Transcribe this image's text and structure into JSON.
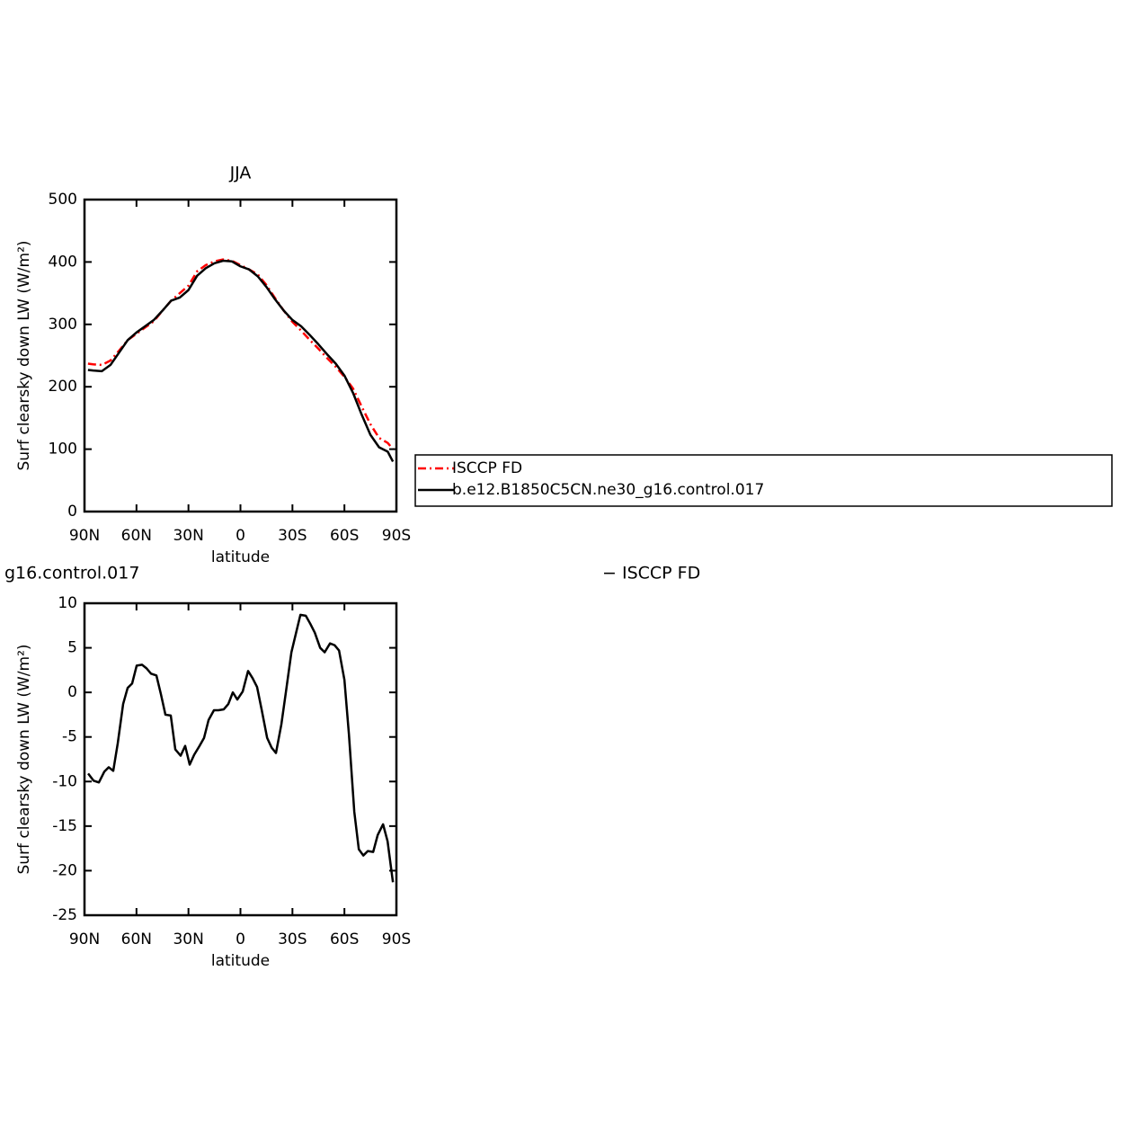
{
  "chart_data": [
    {
      "type": "line",
      "title": "JJA",
      "ylabel": "Surf clearsky down LW (W/m²)",
      "xlabel": "latitude",
      "x": [
        88,
        85,
        80,
        75,
        70,
        65,
        60,
        55,
        50,
        45,
        40,
        35,
        30,
        25,
        20,
        15,
        10,
        5,
        0,
        -5,
        -10,
        -15,
        -20,
        -25,
        -30,
        -35,
        -40,
        -45,
        -50,
        -55,
        -60,
        -65,
        -70,
        -75,
        -80,
        -85,
        -88
      ],
      "xlim": [
        90,
        -90
      ],
      "xticks": [
        {
          "value": 90,
          "label": "90N"
        },
        {
          "value": 60,
          "label": "60N"
        },
        {
          "value": 30,
          "label": "30N"
        },
        0,
        {
          "value": -30,
          "label": "30S"
        },
        {
          "value": -60,
          "label": "60S"
        },
        {
          "value": -90,
          "label": "90S"
        }
      ],
      "ylim": [
        0,
        500
      ],
      "yticks": [
        0,
        100,
        200,
        300,
        400,
        500
      ],
      "legend": "right",
      "series": [
        {
          "name": "ISCCP FD",
          "color": "#ff0000",
          "dash": "dashed",
          "values": [
            237,
            236,
            235,
            242,
            258,
            275,
            285,
            295,
            305,
            322,
            338,
            350,
            362,
            385,
            395,
            401,
            404,
            402,
            395,
            388,
            380,
            363,
            342,
            322,
            304,
            290,
            275,
            261,
            246,
            232,
            216,
            197,
            168,
            140,
            118,
            110,
            100
          ]
        },
        {
          "name": "b.e12.B1850C5CN.ne30_g16.control.017",
          "color": "#000000",
          "dash": "solid",
          "values": [
            227,
            226,
            225,
            235,
            255,
            275,
            287,
            297,
            307,
            322,
            338,
            343,
            355,
            378,
            390,
            398,
            402,
            401,
            393,
            388,
            377,
            360,
            340,
            322,
            307,
            297,
            283,
            268,
            252,
            237,
            218,
            190,
            155,
            123,
            103,
            96,
            80
          ]
        }
      ]
    },
    {
      "type": "line",
      "title": "g16.control.017",
      "title_right": "− ISCCP FD",
      "ylabel": "Surf clearsky down LW (W/m²)",
      "xlabel": "latitude",
      "x": [
        87.9,
        84.8,
        81.7,
        78.6,
        76.0,
        73.4,
        70.8,
        67.7,
        65.1,
        62.5,
        59.9,
        56.8,
        54.2,
        51.6,
        48.5,
        45.9,
        43.3,
        40.2,
        37.6,
        34.5,
        31.9,
        29.3,
        26.7,
        23.6,
        21.0,
        18.4,
        15.3,
        12.7,
        9.6,
        7.0,
        4.4,
        1.8,
        -1.3,
        -4.4,
        -7.0,
        -9.6,
        -12.2,
        -15.4,
        -18.0,
        -20.5,
        -23.6,
        -26.2,
        -29.4,
        -32.0,
        -34.6,
        -37.7,
        -40.3,
        -42.9,
        -46.0,
        -48.6,
        -51.7,
        -54.3,
        -56.9,
        -60.0,
        -62.6,
        -65.7,
        -68.3,
        -70.9,
        -73.5,
        -76.6,
        -79.2,
        -82.3,
        -84.9,
        -88.0
      ],
      "xlim": [
        90,
        -90
      ],
      "xticks": [
        {
          "value": 90,
          "label": "90N"
        },
        {
          "value": 60,
          "label": "60N"
        },
        {
          "value": 30,
          "label": "30N"
        },
        0,
        {
          "value": -30,
          "label": "30S"
        },
        {
          "value": -60,
          "label": "60S"
        },
        {
          "value": -90,
          "label": "90S"
        }
      ],
      "ylim": [
        -25,
        10
      ],
      "yticks": [
        -25,
        -20,
        -15,
        -10,
        -5,
        0,
        5,
        10
      ],
      "series": [
        {
          "color": "#000000",
          "dash": "solid",
          "values": [
            -9.1,
            -9.9,
            -10.1,
            -8.9,
            -8.4,
            -8.8,
            -5.7,
            -1.3,
            0.5,
            1.0,
            3.0,
            3.1,
            2.7,
            2.1,
            1.9,
            -0.2,
            -2.5,
            -2.6,
            -6.4,
            -7.1,
            -6.0,
            -8.1,
            -7.0,
            -6.0,
            -5.1,
            -3.1,
            -2.0,
            -2.0,
            -1.9,
            -1.3,
            0.0,
            -0.8,
            0.1,
            2.4,
            1.6,
            0.6,
            -1.9,
            -5.1,
            -6.2,
            -6.8,
            -3.6,
            0.0,
            4.5,
            6.6,
            8.7,
            8.6,
            7.7,
            6.7,
            5.0,
            4.5,
            5.5,
            5.3,
            4.7,
            1.4,
            -4.7,
            -13.4,
            -17.6,
            -18.3,
            -17.8,
            -17.9,
            -16.0,
            -14.8,
            -16.7,
            -21.3
          ]
        }
      ]
    }
  ]
}
